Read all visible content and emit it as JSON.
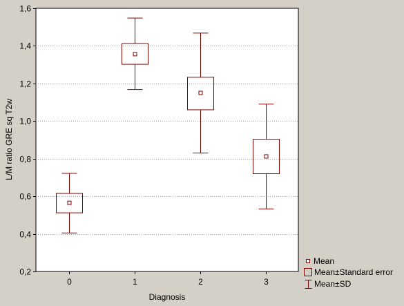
{
  "chart_data": {
    "type": "box",
    "title": "",
    "xlabel": "Diagnosis",
    "ylabel": "L/M ratio GRE sq T2w",
    "categories": [
      "0",
      "1",
      "2",
      "3"
    ],
    "ylim": [
      0.2,
      1.6
    ],
    "yticks": [
      0.2,
      0.4,
      0.6,
      0.8,
      1.0,
      1.2,
      1.4,
      1.6
    ],
    "ytick_labels": [
      "0,2",
      "0,4",
      "0,6",
      "0,8",
      "1,0",
      "1,2",
      "1,4",
      "1,6"
    ],
    "grid": "horizontal dotted",
    "legend_position": "bottom-right, outside plot",
    "colors": {
      "series": "#800000",
      "background": "#d4d0c8",
      "plot": "#ffffff",
      "grid": "#a0a0a0"
    },
    "series": [
      {
        "category": "0",
        "mean": 0.565,
        "se_low": 0.512,
        "se_high": 0.615,
        "sd_low": 0.405,
        "sd_high": 0.722
      },
      {
        "category": "1",
        "mean": 1.356,
        "se_low": 1.302,
        "se_high": 1.412,
        "sd_low": 1.168,
        "sd_high": 1.548
      },
      {
        "category": "2",
        "mean": 1.15,
        "se_low": 1.06,
        "se_high": 1.233,
        "sd_low": 0.83,
        "sd_high": 1.468
      },
      {
        "category": "3",
        "mean": 0.812,
        "se_low": 0.72,
        "se_high": 0.903,
        "sd_low": 0.532,
        "sd_high": 1.09
      }
    ],
    "legend": [
      {
        "key": "mean",
        "label": "Mean"
      },
      {
        "key": "se",
        "label": "Mean±Standard error"
      },
      {
        "key": "sd",
        "label": "Mean±SD"
      }
    ]
  }
}
